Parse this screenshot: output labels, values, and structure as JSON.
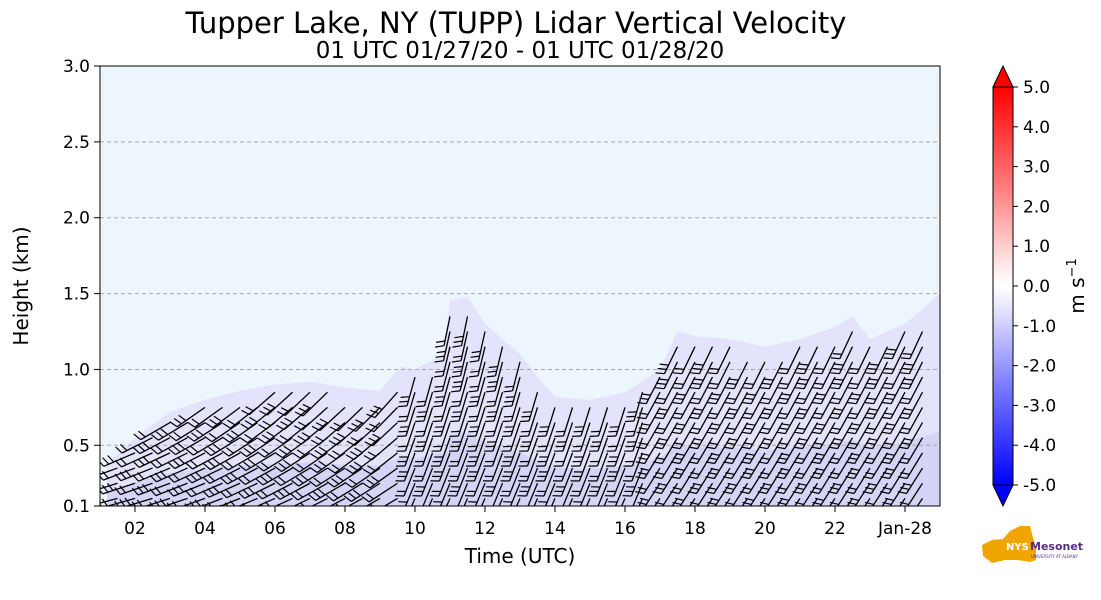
{
  "chart_data": {
    "type": "heatmap",
    "title": "Tupper Lake, NY (TUPP) Lidar Vertical Velocity",
    "subtitle": "01 UTC 01/27/20 - 01 UTC 01/28/20",
    "xlabel": "Time (UTC)",
    "ylabel": "Height (km)",
    "x_range_hours": [
      1,
      25
    ],
    "x_ticks": [
      {
        "hour": 2,
        "label": "02"
      },
      {
        "hour": 4,
        "label": "04"
      },
      {
        "hour": 6,
        "label": "06"
      },
      {
        "hour": 8,
        "label": "08"
      },
      {
        "hour": 10,
        "label": "10"
      },
      {
        "hour": 12,
        "label": "12"
      },
      {
        "hour": 14,
        "label": "14"
      },
      {
        "hour": 16,
        "label": "16"
      },
      {
        "hour": 18,
        "label": "18"
      },
      {
        "hour": 20,
        "label": "20"
      },
      {
        "hour": 22,
        "label": "22"
      },
      {
        "hour": 24,
        "label": "Jan-28"
      }
    ],
    "ylim": [
      0.1,
      3.0
    ],
    "y_ticks": [
      {
        "value": 0.1,
        "label": "0.1"
      },
      {
        "value": 0.5,
        "label": "0.5"
      },
      {
        "value": 1.0,
        "label": "1.0"
      },
      {
        "value": 1.5,
        "label": "1.5"
      },
      {
        "value": 2.0,
        "label": "2.0"
      },
      {
        "value": 2.5,
        "label": "2.5"
      },
      {
        "value": 3.0,
        "label": "3.0"
      }
    ],
    "grid": "horizontal dashed",
    "background_color": "#eef6fd",
    "echo_top_km": [
      {
        "hour": 1.2,
        "top": 0.38
      },
      {
        "hour": 2.0,
        "top": 0.55
      },
      {
        "hour": 3.0,
        "top": 0.72
      },
      {
        "hour": 4.0,
        "top": 0.8
      },
      {
        "hour": 5.0,
        "top": 0.86
      },
      {
        "hour": 6.0,
        "top": 0.9
      },
      {
        "hour": 7.0,
        "top": 0.92
      },
      {
        "hour": 8.0,
        "top": 0.88
      },
      {
        "hour": 9.0,
        "top": 0.86
      },
      {
        "hour": 9.6,
        "top": 1.02
      },
      {
        "hour": 10.0,
        "top": 1.0
      },
      {
        "hour": 10.8,
        "top": 1.1
      },
      {
        "hour": 11.0,
        "top": 1.45
      },
      {
        "hour": 11.5,
        "top": 1.48
      },
      {
        "hour": 12.0,
        "top": 1.3
      },
      {
        "hour": 12.5,
        "top": 1.2
      },
      {
        "hour": 13.0,
        "top": 1.1
      },
      {
        "hour": 13.5,
        "top": 0.95
      },
      {
        "hour": 14.0,
        "top": 0.82
      },
      {
        "hour": 15.0,
        "top": 0.8
      },
      {
        "hour": 16.0,
        "top": 0.85
      },
      {
        "hour": 17.0,
        "top": 1.0
      },
      {
        "hour": 17.5,
        "top": 1.25
      },
      {
        "hour": 18.0,
        "top": 1.22
      },
      {
        "hour": 19.0,
        "top": 1.2
      },
      {
        "hour": 20.0,
        "top": 1.15
      },
      {
        "hour": 21.0,
        "top": 1.2
      },
      {
        "hour": 22.0,
        "top": 1.28
      },
      {
        "hour": 22.5,
        "top": 1.35
      },
      {
        "hour": 23.0,
        "top": 1.2
      },
      {
        "hour": 24.0,
        "top": 1.3
      },
      {
        "hour": 25.0,
        "top": 1.5
      }
    ],
    "colorbar": {
      "label": "m s",
      "label_superscript": "−1",
      "min": -5.0,
      "max": 5.0,
      "extend": "both",
      "ticks": [
        {
          "value": 5.0,
          "label": "5.0"
        },
        {
          "value": 4.0,
          "label": "4.0"
        },
        {
          "value": 3.0,
          "label": "3.0"
        },
        {
          "value": 2.0,
          "label": "2.0"
        },
        {
          "value": 1.0,
          "label": "1.0"
        },
        {
          "value": 0.0,
          "label": "0.0"
        },
        {
          "value": -1.0,
          "label": "-1.0"
        },
        {
          "value": -2.0,
          "label": "-2.0"
        },
        {
          "value": -3.0,
          "label": "-3.0"
        },
        {
          "value": -4.0,
          "label": "-4.0"
        },
        {
          "value": -5.0,
          "label": "-5.0"
        }
      ],
      "color_low": "#0000ff",
      "color_mid": "#ffffff",
      "color_high": "#ff0000"
    },
    "overlay": "wind barbs (black)"
  },
  "logo": {
    "text": "NYS Mesonet",
    "subtext": "UNIVERSITY AT ALBANY",
    "shape_color": "#f0a500",
    "text_color": "#5a2d82"
  }
}
